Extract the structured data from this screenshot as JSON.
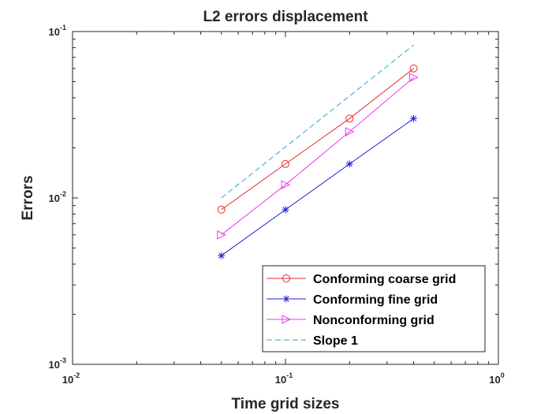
{
  "chart_data": {
    "type": "line",
    "title": "L2 errors displacement",
    "xlabel": "Time grid sizes",
    "ylabel": "Errors",
    "xscale": "log",
    "yscale": "log",
    "xlim": [
      0.01,
      1
    ],
    "ylim": [
      0.001,
      0.1
    ],
    "x_ticks": [
      {
        "value": 0.01,
        "base": "10",
        "exp": "-2"
      },
      {
        "value": 0.1,
        "base": "10",
        "exp": "-1"
      },
      {
        "value": 1,
        "base": "10",
        "exp": "0"
      }
    ],
    "y_ticks": [
      {
        "value": 0.001,
        "base": "10",
        "exp": "-3"
      },
      {
        "value": 0.01,
        "base": "10",
        "exp": "-2"
      },
      {
        "value": 0.1,
        "base": "10",
        "exp": "-1"
      }
    ],
    "grid": false,
    "legend_position": "bottom-right",
    "series": [
      {
        "name": "Conforming coarse grid",
        "color": "#e8292a",
        "marker": "circle",
        "dash": "none",
        "x": [
          0.05,
          0.1,
          0.2,
          0.4
        ],
        "y": [
          0.0085,
          0.016,
          0.03,
          0.06
        ]
      },
      {
        "name": "Conforming fine grid",
        "color": "#1f1fd6",
        "marker": "asterisk",
        "dash": "none",
        "x": [
          0.05,
          0.1,
          0.2,
          0.4
        ],
        "y": [
          0.0045,
          0.0085,
          0.016,
          0.03
        ]
      },
      {
        "name": "Nonconforming grid",
        "color": "#ea39ea",
        "marker": "triangle-right",
        "dash": "none",
        "x": [
          0.05,
          0.1,
          0.2,
          0.4
        ],
        "y": [
          0.006,
          0.012,
          0.025,
          0.053
        ]
      },
      {
        "name": "Slope 1",
        "color": "#2aa6d6",
        "marker": "none",
        "dash": "dashed",
        "x": [
          0.05,
          0.4
        ],
        "y": [
          0.01,
          0.083
        ]
      }
    ]
  }
}
